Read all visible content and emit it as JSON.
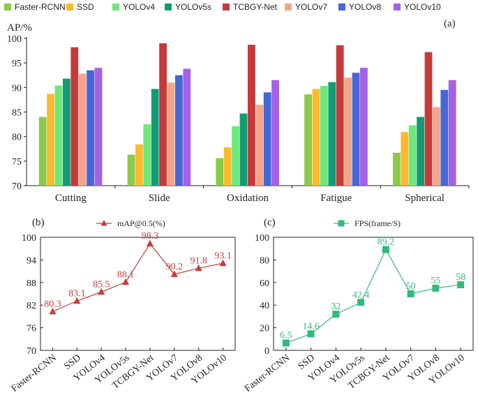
{
  "colors": {
    "Faster-RCNN": "#8ccb4a",
    "SSD": "#fbba2c",
    "YOLOv4": "#6ee87a",
    "YOLOv5s": "#119c76",
    "TCBGY-Net": "#c63a3a",
    "YOLOv7": "#f4a589",
    "YOLOv8": "#4566d6",
    "YOLOv10": "#a460e6",
    "map_line": "#c83a3a",
    "fps_line": "#33b97a",
    "axis": "#222222"
  },
  "chart_data": [
    {
      "id": "a",
      "type": "bar",
      "panel_label": "(a)",
      "ylabel": "AP/%",
      "ylim": [
        70,
        100
      ],
      "yticks": [
        70,
        75,
        80,
        85,
        90,
        95,
        100
      ],
      "legend_position": "top",
      "categories": [
        "Cutting",
        "Slide",
        "Oxidation",
        "Fatigue",
        "Spherical"
      ],
      "series": [
        {
          "name": "Faster-RCNN",
          "values": [
            84.0,
            76.3,
            75.6,
            88.6,
            76.7
          ]
        },
        {
          "name": "SSD",
          "values": [
            88.7,
            78.4,
            77.8,
            89.7,
            80.9
          ]
        },
        {
          "name": "YOLOv4",
          "values": [
            90.4,
            82.5,
            82.1,
            90.3,
            82.3
          ]
        },
        {
          "name": "YOLOv5s",
          "values": [
            91.8,
            89.7,
            84.7,
            91.1,
            84.0
          ]
        },
        {
          "name": "TCBGY-Net",
          "values": [
            98.2,
            99.0,
            98.7,
            98.6,
            97.2
          ]
        },
        {
          "name": "YOLOv7",
          "values": [
            92.8,
            91.0,
            86.5,
            92.0,
            86.0
          ]
        },
        {
          "name": "YOLOv8",
          "values": [
            93.5,
            92.5,
            89.0,
            93.0,
            89.5
          ]
        },
        {
          "name": "YOLOv10",
          "values": [
            94.0,
            93.8,
            91.5,
            94.0,
            91.5
          ]
        }
      ]
    },
    {
      "id": "b",
      "type": "line",
      "panel_label": "(b)",
      "legend": "mAP@0.5(%)",
      "marker": "triangle",
      "ylim": [
        70,
        100
      ],
      "yticks": [
        70,
        76,
        82,
        88,
        94,
        100
      ],
      "categories": [
        "Faster-RCNN",
        "SSD",
        "YOLOv4",
        "YOLOv5s",
        "TCBGY-Net",
        "YOLOv7",
        "YOLOv8",
        "YOLOv10"
      ],
      "values": [
        80.3,
        83.1,
        85.5,
        88.1,
        98.3,
        90.2,
        91.8,
        93.1
      ],
      "data_labels": [
        "80.3",
        "83.1",
        "85.5",
        "88.1",
        "98.3",
        "90.2",
        "91.8",
        "93.1"
      ]
    },
    {
      "id": "c",
      "type": "line",
      "panel_label": "(c)",
      "legend": "FPS(frame/S)",
      "marker": "square",
      "ylim": [
        0,
        100
      ],
      "yticks": [
        0,
        20,
        40,
        60,
        80,
        100
      ],
      "categories": [
        "Faster-RCNN",
        "SSD",
        "YOLOv4",
        "YOLOv5s",
        "TCBGY-Net",
        "YOLOv7",
        "YOLOv8",
        "YOLOv10"
      ],
      "values": [
        6.5,
        14.6,
        32,
        42.4,
        89.2,
        50,
        55,
        58
      ],
      "data_labels": [
        "6.5",
        "14.6",
        "32",
        "42.4",
        "89.2",
        "50",
        "55",
        "58"
      ]
    }
  ]
}
